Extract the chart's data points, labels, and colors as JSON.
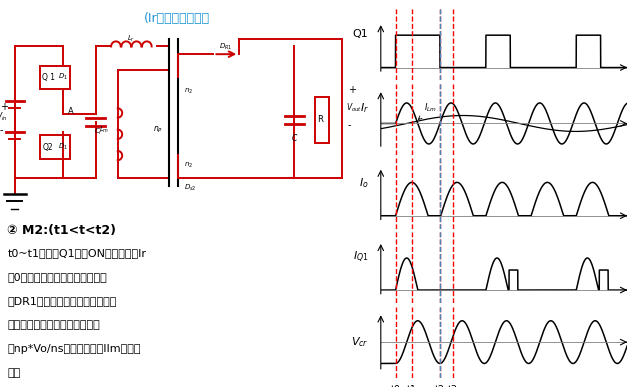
{
  "bg_color": "#ffffff",
  "title_color": "#1F97D4",
  "title_text": "(Ir从左向右为正）",
  "red": "#cc0000",
  "black": "#000000",
  "gray": "#888888",
  "red_dash": "#ff0000",
  "blue_dash": "#4488bb",
  "circuit_text_1": "② M2:(t1<t<t2)",
  "circuit_text_2": "t0~t1时段，Q1已经ON。谐振电流Ir",
  "circuit_text_3": "从0开始以近似正弦规律增大，副",
  "circuit_text_4": "边DR1依然导通，副边电压即为输",
  "circuit_text_5": "出电压，那么原边电压是恒定值",
  "circuit_text_6": "（np*Vo/ns），那么电流IIm线性上",
  "circuit_text_7": "升。",
  "T": 3.0,
  "t0": 0.18,
  "t1": 0.38,
  "t2": 0.72,
  "t3": 0.88,
  "period": 1.1
}
